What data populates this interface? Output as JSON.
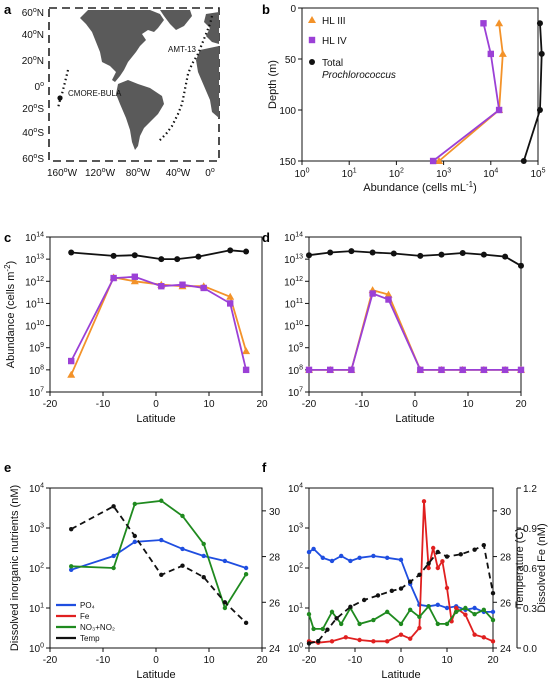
{
  "figure": {
    "panel_letters": [
      "a",
      "b",
      "c",
      "d",
      "e",
      "f"
    ]
  },
  "map": {
    "lat_ticks": [
      "60",
      "40",
      "20",
      "0",
      "20",
      "40",
      "60"
    ],
    "lat_hemi": [
      "N",
      "N",
      "N",
      "",
      "S",
      "S",
      "S"
    ],
    "lon_ticks": [
      "160",
      "120",
      "80",
      "40",
      "0"
    ],
    "lon_hemi": [
      "W",
      "W",
      "W",
      "W",
      ""
    ],
    "degree_symbol": "o",
    "labels": {
      "cruise_a": "CMORE-BULA",
      "cruise_b": "AMT-13"
    },
    "colors": {
      "land": "#5a5a5a",
      "track": "#111111",
      "frame": "#222222"
    }
  },
  "chart_data": [
    {
      "id": "b",
      "type": "line",
      "xlabel": "Abundance (cells mL",
      "xlabel_sup": "-1",
      "xlabel_tail": ")",
      "ylabel": "Depth (m)",
      "x_scale": "log",
      "xlim": [
        1,
        100000
      ],
      "ylim": [
        0,
        150
      ],
      "y_inverted": true,
      "x_ticks": [
        {
          "base": "10",
          "exp": "0",
          "v": 1
        },
        {
          "base": "10",
          "exp": "1",
          "v": 10
        },
        {
          "base": "10",
          "exp": "2",
          "v": 100
        },
        {
          "base": "10",
          "exp": "3",
          "v": 1000
        },
        {
          "base": "10",
          "exp": "4",
          "v": 10000
        },
        {
          "base": "10",
          "exp": "5",
          "v": 100000
        }
      ],
      "y_ticks": [
        "0",
        "50",
        "100",
        "150"
      ],
      "legend_position": "top-left",
      "series": [
        {
          "name": "HL III",
          "color": "#f39229",
          "marker": "triangle",
          "x": [
            15000,
            18000,
            15000,
            800
          ],
          "y": [
            15,
            45,
            100,
            150
          ]
        },
        {
          "name": "HL IV",
          "color": "#9b40d6",
          "marker": "square",
          "x": [
            7000,
            10000,
            15000,
            600
          ],
          "y": [
            15,
            45,
            100,
            150
          ]
        },
        {
          "name": "Total",
          "name_line2": "Prochlorococcus",
          "color": "#111111",
          "marker": "circle",
          "x": [
            110000,
            120000,
            110000,
            50000
          ],
          "y": [
            15,
            45,
            100,
            150
          ]
        }
      ]
    },
    {
      "id": "c",
      "type": "line",
      "xlabel": "Latitude",
      "ylabel": "Abundance (cells m",
      "ylabel_sup": "-2",
      "ylabel_tail": ")",
      "y_scale": "log",
      "xlim": [
        -20,
        20
      ],
      "ylim_exp": [
        7,
        14
      ],
      "x_ticks": [
        "-20",
        "-10",
        "0",
        "10",
        "20"
      ],
      "y_ticks_exp": [
        "7",
        "8",
        "9",
        "10",
        "11",
        "12",
        "13",
        "14"
      ],
      "y_tick_base": "10",
      "series": [
        {
          "color": "#111111",
          "marker": "circle",
          "x": [
            -16,
            -8,
            -4,
            1,
            4,
            8,
            14,
            17
          ],
          "y": [
            20000000000000.0,
            14000000000000.0,
            15000000000000.0,
            10000000000000.0,
            10000000000000.0,
            13000000000000.0,
            25000000000000.0,
            22000000000000.0
          ]
        },
        {
          "color": "#f39229",
          "marker": "triangle",
          "x": [
            -16,
            -8,
            -4,
            1,
            5,
            9,
            14,
            17
          ],
          "y": [
            60000000.0,
            1500000000000.0,
            1000000000000.0,
            700000000000.0,
            600000000000.0,
            600000000000.0,
            200000000000.0,
            700000000.0
          ]
        },
        {
          "color": "#9b40d6",
          "marker": "square",
          "x": [
            -16,
            -8,
            -4,
            1,
            5,
            9,
            14,
            17
          ],
          "y": [
            250000000.0,
            1400000000000.0,
            1600000000000.0,
            600000000000.0,
            700000000000.0,
            500000000000.0,
            100000000000.0,
            100000000.0
          ]
        }
      ]
    },
    {
      "id": "d",
      "type": "line",
      "xlabel": "Latitude",
      "y_scale": "log",
      "xlim": [
        -20,
        20
      ],
      "ylim_exp": [
        7,
        14
      ],
      "x_ticks": [
        "-20",
        "-10",
        "0",
        "10",
        "20"
      ],
      "y_ticks_exp": [
        "7",
        "8",
        "9",
        "10",
        "11",
        "12",
        "13",
        "14"
      ],
      "y_tick_base": "10",
      "series": [
        {
          "color": "#111111",
          "marker": "circle",
          "x": [
            -20,
            -16,
            -12,
            -8,
            -4,
            1,
            5,
            9,
            13,
            17,
            20
          ],
          "y": [
            15000000000000.0,
            20000000000000.0,
            23000000000000.0,
            20000000000000.0,
            18000000000000.0,
            14000000000000.0,
            16000000000000.0,
            19000000000000.0,
            16000000000000.0,
            13000000000000.0,
            5000000000000.0
          ]
        },
        {
          "color": "#f39229",
          "marker": "triangle",
          "x": [
            -20,
            -16,
            -12,
            -8,
            -5,
            1,
            5,
            9,
            13,
            17,
            20
          ],
          "y": [
            100000000.0,
            100000000.0,
            100000000.0,
            400000000000.0,
            250000000000.0,
            100000000.0,
            100000000.0,
            100000000.0,
            100000000.0,
            100000000.0,
            100000000.0
          ]
        },
        {
          "color": "#9b40d6",
          "marker": "square",
          "x": [
            -20,
            -16,
            -12,
            -8,
            -5,
            1,
            5,
            9,
            13,
            17,
            20
          ],
          "y": [
            100000000.0,
            100000000.0,
            100000000.0,
            280000000000.0,
            150000000000.0,
            100000000.0,
            100000000.0,
            100000000.0,
            100000000.0,
            100000000.0,
            100000000.0
          ]
        }
      ]
    },
    {
      "id": "e",
      "type": "line",
      "xlabel": "Latitude",
      "ylabel": "Dissolved inorganic nutrients (nM)",
      "y_scale": "log",
      "xlim": [
        -20,
        20
      ],
      "ylim_exp": [
        0,
        4
      ],
      "x_ticks": [
        "-20",
        "-10",
        "0",
        "10",
        "20"
      ],
      "y_ticks_exp": [
        "0",
        "1",
        "2",
        "3",
        "4"
      ],
      "y_tick_base": "10",
      "y2_ticks": [
        "24",
        "26",
        "28",
        "30"
      ],
      "y2lim": [
        24,
        31
      ],
      "legend_position": "bottom-left",
      "series": [
        {
          "name": "PO₄",
          "color": "#1f4ee0",
          "axis": "left",
          "x": [
            -16,
            -8,
            -4,
            1,
            5,
            9,
            13,
            17
          ],
          "y": [
            90,
            200,
            450,
            500,
            300,
            200,
            150,
            100
          ]
        },
        {
          "name": "Fe",
          "color": "#e02020",
          "axis": "left",
          "x": [],
          "y": []
        },
        {
          "name": "NO₃+NO₂",
          "color": "#1f8a1f",
          "axis": "left",
          "x": [
            -16,
            -8,
            -4,
            1,
            5,
            9,
            13,
            17
          ],
          "y": [
            110,
            100,
            4000,
            4800,
            2000,
            400,
            10,
            70
          ]
        },
        {
          "name": "Temp",
          "color": "#111111",
          "axis": "right",
          "dashed": true,
          "x": [
            -16,
            -8,
            -4,
            1,
            5,
            9,
            13,
            17
          ],
          "y": [
            29.2,
            30.2,
            28.9,
            27.2,
            27.6,
            27.1,
            26.0,
            25.1
          ]
        }
      ]
    },
    {
      "id": "f",
      "type": "line",
      "xlabel": "Latitude",
      "y_scale": "log",
      "xlim": [
        -20,
        20
      ],
      "ylim_exp": [
        0,
        4
      ],
      "x_ticks": [
        "-20",
        "-10",
        "0",
        "10",
        "20"
      ],
      "y_ticks_exp": [
        "0",
        "1",
        "2",
        "3",
        "4"
      ],
      "y_tick_base": "10",
      "y2_label": "Temperature (C)",
      "y2_ticks": [
        "24",
        "26",
        "28",
        "30"
      ],
      "y2lim": [
        24,
        31
      ],
      "y3_label": "Dissolved Fe (nM)",
      "y3_ticks": [
        "0.0",
        "0.3",
        "0.6",
        "0.9",
        "1.2"
      ],
      "y3lim": [
        0,
        1.2
      ],
      "series": [
        {
          "color": "#1f4ee0",
          "axis": "left",
          "x": [
            -20,
            -19,
            -17,
            -15,
            -13,
            -11,
            -9,
            -6,
            -3,
            0,
            2,
            4,
            6,
            8,
            10,
            12,
            14,
            16,
            18,
            20
          ],
          "y": [
            250,
            300,
            180,
            150,
            200,
            150,
            180,
            200,
            180,
            160,
            40,
            12,
            11,
            12,
            10,
            11,
            9,
            10,
            8,
            8
          ]
        },
        {
          "color": "#e02020",
          "axis": "fe",
          "x": [
            -20,
            -18,
            -15,
            -12,
            -9,
            -6,
            -3,
            0,
            2,
            4,
            5,
            6,
            7,
            8,
            9,
            10,
            11,
            12,
            14,
            16,
            18,
            20
          ],
          "y": [
            0.05,
            0.04,
            0.05,
            0.08,
            0.06,
            0.05,
            0.05,
            0.1,
            0.07,
            0.15,
            1.1,
            0.6,
            0.75,
            0.6,
            0.65,
            0.45,
            0.2,
            0.3,
            0.25,
            0.1,
            0.08,
            0.05
          ]
        },
        {
          "color": "#1f8a1f",
          "axis": "left",
          "x": [
            -20,
            -19,
            -17,
            -15,
            -13,
            -11,
            -9,
            -6,
            -3,
            0,
            2,
            4,
            6,
            8,
            10,
            12,
            14,
            16,
            18,
            20
          ],
          "y": [
            7,
            3,
            3,
            8,
            4,
            10,
            4,
            5,
            8,
            4,
            9,
            6,
            11,
            4,
            4,
            8,
            10,
            7,
            9,
            5
          ]
        },
        {
          "color": "#111111",
          "axis": "right",
          "dashed": true,
          "x": [
            -20,
            -18,
            -16,
            -14,
            -11,
            -8,
            -5,
            -2,
            0,
            2,
            4,
            6,
            8,
            10,
            13,
            16,
            18,
            20
          ],
          "y": [
            24.2,
            24.3,
            24.8,
            25.3,
            25.8,
            26.1,
            26.3,
            26.5,
            26.6,
            26.9,
            27.2,
            27.7,
            28.2,
            28.0,
            28.1,
            28.3,
            28.5,
            26.4
          ]
        }
      ]
    }
  ]
}
